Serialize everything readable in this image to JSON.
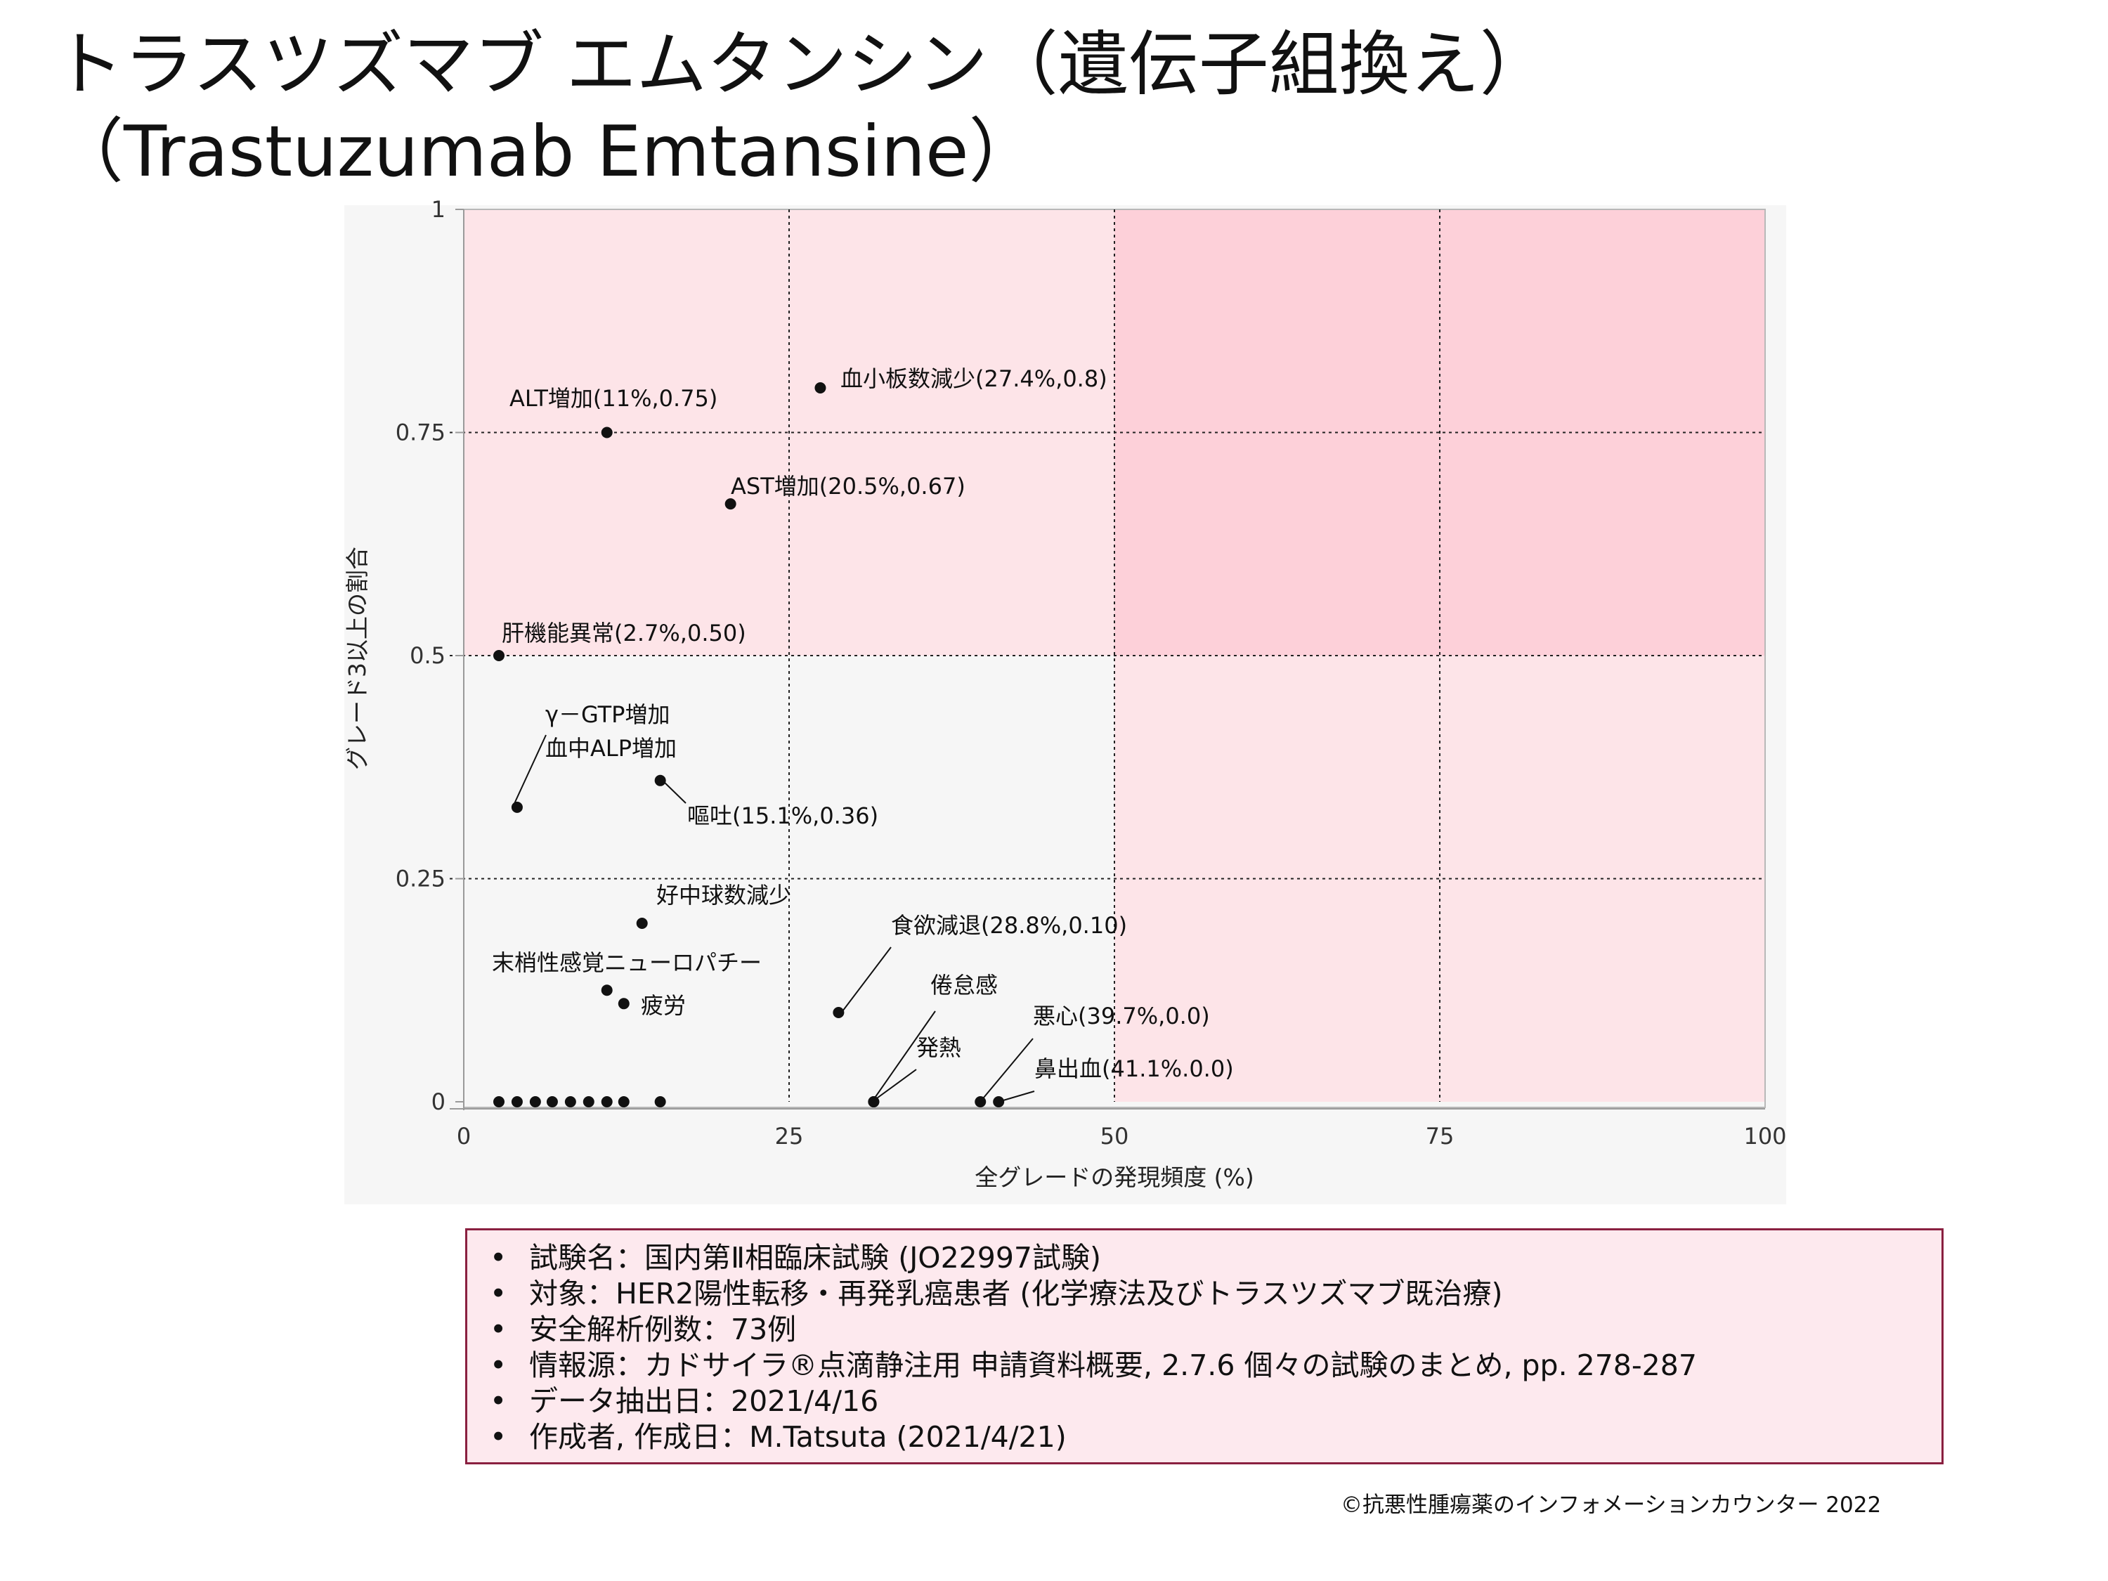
{
  "title": {
    "line1": "トラスツズマブ エムタンシン（遺伝子組換え）",
    "line2": "（Trastuzumab Emtansine）"
  },
  "chart_data": {
    "type": "scatter",
    "xlabel": "全グレードの発現頻度 (%)",
    "ylabel": "グレード3以上の割合",
    "xlim": [
      0,
      100
    ],
    "ylim": [
      0,
      1
    ],
    "x_ticks": [
      "0",
      "25",
      "50",
      "75",
      "100"
    ],
    "y_ticks": [
      "0",
      "0.25",
      "0.5",
      "0.75",
      "1"
    ],
    "grid": "dotted lines at x=25,50,75 and y=0.25,0.5,0.75",
    "regions": [
      {
        "x": [
          0,
          100
        ],
        "y": [
          0.5,
          1
        ],
        "color": "#fde4e8"
      },
      {
        "x": [
          50,
          100
        ],
        "y": [
          0,
          0.5
        ],
        "color": "#fde4e8"
      },
      {
        "x": [
          50,
          100
        ],
        "y": [
          0.5,
          1
        ],
        "color": "#fdd0d9"
      }
    ],
    "points": [
      {
        "x": 11,
        "y": 0.75,
        "label": "ALT増加(11%,0.75)"
      },
      {
        "x": 27.4,
        "y": 0.8,
        "label": "血小板数減少(27.4%,0.8)"
      },
      {
        "x": 20.5,
        "y": 0.67,
        "label": "AST増加(20.5%,0.67)"
      },
      {
        "x": 2.7,
        "y": 0.5,
        "label": "肝機能異常(2.7%,0.50)"
      },
      {
        "x": 4.1,
        "y": 0.33,
        "label": "γ－GTP増加\n血中ALP増加"
      },
      {
        "x": 15.1,
        "y": 0.36,
        "label": "嘔吐(15.1%,0.36)"
      },
      {
        "x": 13.7,
        "y": 0.2,
        "label": "好中球数減少"
      },
      {
        "x": 11,
        "y": 0.125,
        "label": "末梢性感覚ニューロパチー"
      },
      {
        "x": 12.3,
        "y": 0.11,
        "label": "疲労"
      },
      {
        "x": 28.8,
        "y": 0.1,
        "label": "食欲減退(28.8%,0.10)"
      },
      {
        "x": 31.5,
        "y": 0,
        "label": "倦怠感"
      },
      {
        "x": 31.5,
        "y": 0,
        "label": "発熱"
      },
      {
        "x": 39.7,
        "y": 0,
        "label": "悪心(39.7%,0.0)"
      },
      {
        "x": 41.1,
        "y": 0,
        "label": "鼻出血(41.1%.0.0)"
      },
      {
        "x": 2.7,
        "y": 0
      },
      {
        "x": 4.1,
        "y": 0
      },
      {
        "x": 5.5,
        "y": 0
      },
      {
        "x": 6.8,
        "y": 0
      },
      {
        "x": 8.2,
        "y": 0
      },
      {
        "x": 9.6,
        "y": 0
      },
      {
        "x": 11,
        "y": 0
      },
      {
        "x": 12.3,
        "y": 0
      },
      {
        "x": 15.1,
        "y": 0
      }
    ]
  },
  "info": [
    "試験名：国内第Ⅱ相臨床試験 (JO22997試験)",
    "対象：HER2陽性転移・再発乳癌患者 (化学療法及びトラスツズマブ既治療)",
    "安全解析例数：73例",
    "情報源：カドサイラ®点滴静注用 申請資料概要, 2.7.6 個々の試験のまとめ, pp. 278-287",
    "データ抽出日：2021/4/16",
    "作成者, 作成日：M.Tatsuta (2021/4/21)"
  ],
  "copyright": "©抗悪性腫瘍薬のインフォメーションカウンター  2022",
  "colors": {
    "region_light": "#fde4e8",
    "region_dark": "#fdd0d9",
    "chart_bg": "#f6f6f6",
    "info_bg": "#fde9ee",
    "info_border": "#8a2040"
  }
}
